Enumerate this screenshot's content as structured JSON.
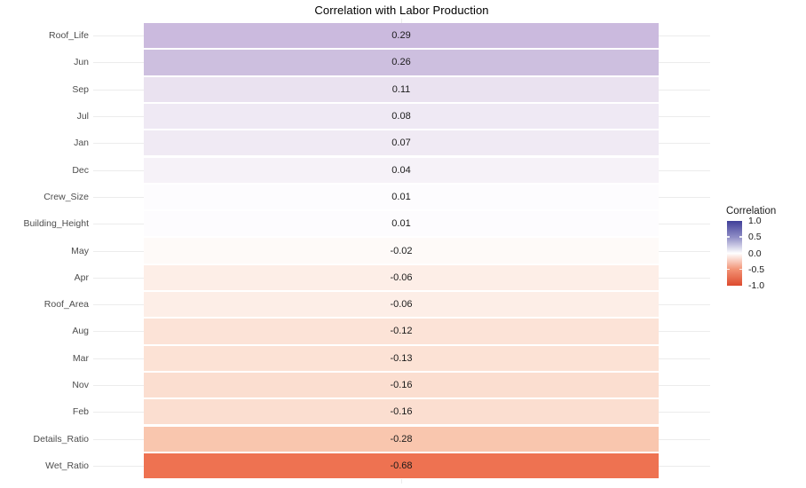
{
  "title": "Correlation with Labor Production",
  "chart_data": {
    "type": "heatmap",
    "orientation": "horizontal_single_column",
    "title": "Correlation with Labor Production",
    "xlabel": "",
    "ylabel": "",
    "grid": true,
    "categories": [
      "Roof_Life",
      "Jun",
      "Sep",
      "Jul",
      "Jan",
      "Dec",
      "Crew_Size",
      "Building_Height",
      "May",
      "Apr",
      "Roof_Area",
      "Aug",
      "Mar",
      "Nov",
      "Feb",
      "Details_Ratio",
      "Wet_Ratio"
    ],
    "values": [
      0.29,
      0.26,
      0.11,
      0.08,
      0.07,
      0.04,
      0.01,
      0.01,
      -0.02,
      -0.06,
      -0.06,
      -0.12,
      -0.13,
      -0.16,
      -0.16,
      -0.28,
      -0.68
    ],
    "value_labels": [
      "0.29",
      "0.26",
      "0.11",
      "0.08",
      "0.07",
      "0.04",
      "0.01",
      "0.01",
      "-0.02",
      "-0.06",
      "-0.06",
      "-0.12",
      "-0.13",
      "-0.16",
      "-0.16",
      "-0.28",
      "-0.68"
    ],
    "tile_colors": [
      "#cbbade",
      "#cdbfdf",
      "#eae2f0",
      "#efe9f4",
      "#f0eaf4",
      "#f6f2f8",
      "#fdfcfe",
      "#fdfcfe",
      "#fefaf8",
      "#fdeee7",
      "#fdeee7",
      "#fce3d7",
      "#fce2d5",
      "#fbded0",
      "#fbded0",
      "#f9c6ae",
      "#ee7251"
    ],
    "legend": {
      "title": "Correlation",
      "position": "right",
      "ticks": [
        "1.0",
        "0.5",
        "0.0",
        "-0.5",
        "-1.0"
      ],
      "tick_values": [
        1.0,
        0.5,
        0.0,
        -0.5,
        -1.0
      ],
      "gradient_stops": [
        "#403f99",
        "#8f8dc6",
        "#ffffff",
        "#f29274",
        "#dd4a2e"
      ],
      "domain": [
        1.0,
        -1.0
      ]
    },
    "colors": {
      "background": "#ffffff",
      "gridline": "#ececec",
      "title_text": "#000000",
      "axis_label_text": "#4d4d4d",
      "value_text": "#1a1a1a",
      "positive_end": "#403f99",
      "negative_end": "#dd4a2e",
      "midpoint": "#ffffff"
    }
  }
}
